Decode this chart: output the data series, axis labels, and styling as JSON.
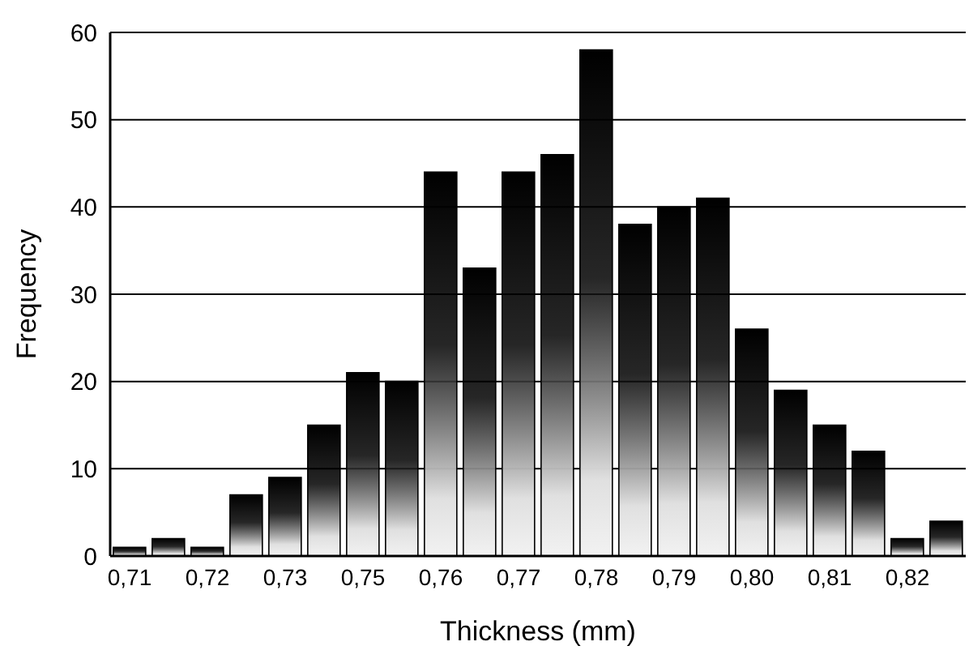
{
  "chart_data": {
    "type": "bar",
    "xlabel": "Thickness (mm)",
    "ylabel": "Frequency",
    "categories": [
      "0,71",
      null,
      "0,72",
      null,
      "0,73",
      null,
      "0,75",
      null,
      "0,76",
      null,
      "0,77",
      null,
      "0,78",
      null,
      "0,79",
      null,
      "0,80",
      null,
      "0,81",
      null,
      "0,82",
      null
    ],
    "values": [
      1,
      2,
      1,
      7,
      9,
      15,
      21,
      20,
      44,
      33,
      44,
      46,
      58,
      38,
      40,
      41,
      26,
      19,
      15,
      12,
      2,
      4
    ],
    "color": "#000000",
    "ylim": [
      0,
      60
    ],
    "yticks": [
      0,
      10,
      20,
      30,
      40,
      50,
      60
    ],
    "grid": "y"
  }
}
